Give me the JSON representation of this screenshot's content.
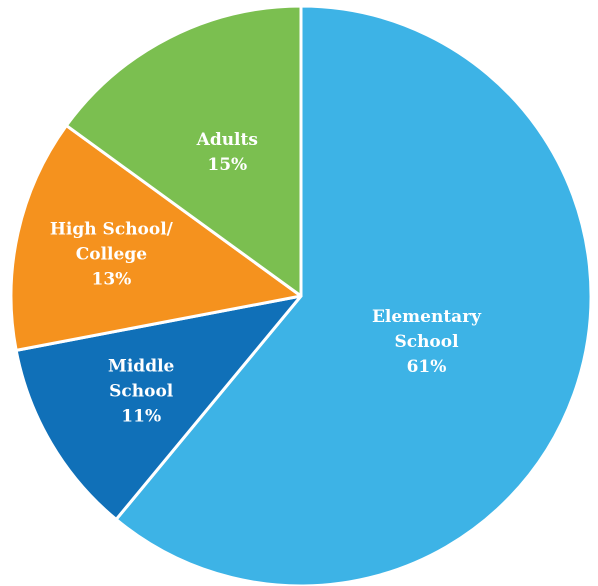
{
  "chart_data": {
    "type": "pie",
    "title": "",
    "start_angle_deg": 0,
    "direction": "clockwise",
    "slices": [
      {
        "label_lines": [
          "Elementary",
          "School"
        ],
        "value": 61,
        "value_label": "61%",
        "color": "#3db3e6"
      },
      {
        "label_lines": [
          "Middle",
          "School"
        ],
        "value": 11,
        "value_label": "11%",
        "color": "#1070b8"
      },
      {
        "label_lines": [
          "High School/",
          "College"
        ],
        "value": 13,
        "value_label": "13%",
        "color": "#f5921e"
      },
      {
        "label_lines": [
          "Adults"
        ],
        "value": 15,
        "value_label": "15%",
        "color": "#7bbf50"
      }
    ],
    "separator_color": "#ffffff",
    "legend": "none"
  }
}
